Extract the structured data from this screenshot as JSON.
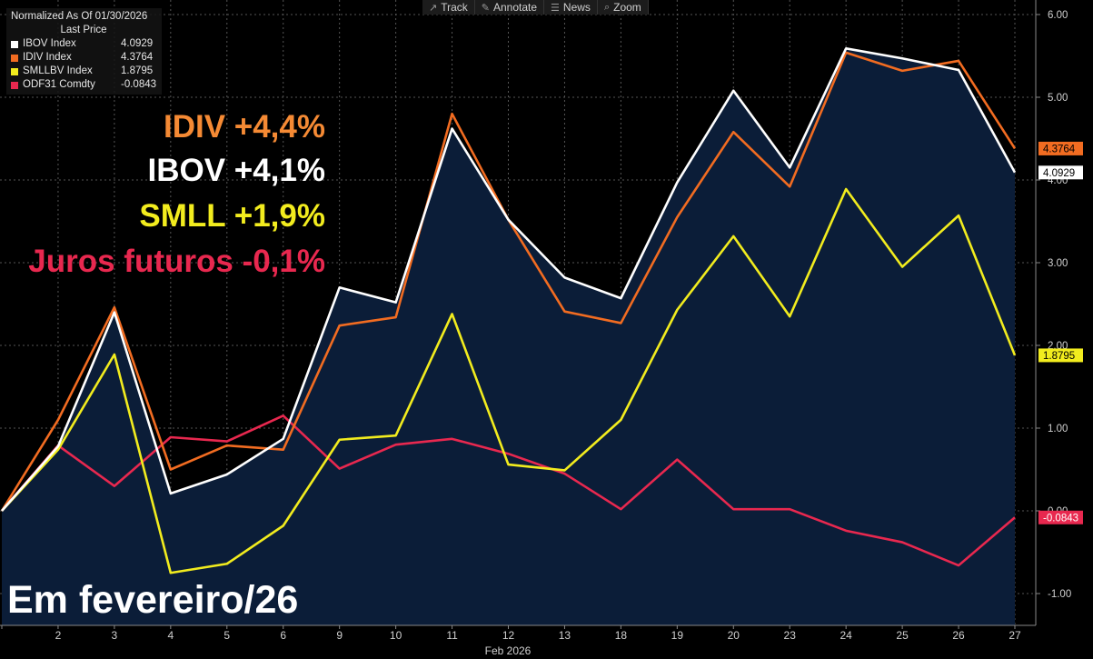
{
  "toolbar": {
    "items": [
      {
        "label": "Track",
        "icon": "track-icon"
      },
      {
        "label": "Annotate",
        "icon": "pencil-icon"
      },
      {
        "label": "News",
        "icon": "news-icon"
      },
      {
        "label": "Zoom",
        "icon": "magnifier-icon"
      }
    ]
  },
  "legend": {
    "header": "Normalized As Of 01/30/2026",
    "subheader": "Last Price",
    "entries": [
      {
        "name": "IBOV Index",
        "value": "4.0929",
        "color": "#ffffff"
      },
      {
        "name": "IDIV Index",
        "value": "4.3764",
        "color": "#f26c21"
      },
      {
        "name": "SMLLBV Index",
        "value": "1.8795",
        "color": "#f2ec1e"
      },
      {
        "name": "ODF31 Comdty",
        "value": "-0.0843",
        "color": "#e8284f"
      }
    ]
  },
  "annotations": [
    {
      "text": "IDIV +4,4%",
      "color": "#f58a34"
    },
    {
      "text": "IBOV +4,1%",
      "color": "#ffffff"
    },
    {
      "text": "SMLL +1,9%",
      "color": "#f2ec1e"
    },
    {
      "text": "Juros futuros -0,1%",
      "color": "#e8284f"
    }
  ],
  "footer_text": "Em fevereiro/26",
  "chart_data": {
    "type": "line",
    "xlabel": "Feb 2026",
    "categories": [
      "1",
      "2",
      "3",
      "4",
      "5",
      "6",
      "9",
      "10",
      "11",
      "12",
      "13",
      "18",
      "19",
      "20",
      "23",
      "24",
      "25",
      "26",
      "27"
    ],
    "x_tick_labels": [
      "",
      "2",
      "3",
      "4",
      "5",
      "6",
      "9",
      "10",
      "11",
      "12",
      "13",
      "18",
      "19",
      "20",
      "23",
      "24",
      "25",
      "26",
      "27"
    ],
    "y_ticks": [
      "6.00",
      "5.00",
      "4.00",
      "3.00",
      "2.00",
      "1.00",
      "0.00",
      "-1.00"
    ],
    "ylim": [
      -1.35,
      6.15
    ],
    "grid": true,
    "background": "#000000",
    "area_fill_color": "#0b1d38",
    "series": [
      {
        "name": "IBOV Index",
        "color": "#ffffff",
        "last_label": "4.0929",
        "values": [
          0.0,
          0.78,
          2.4,
          0.21,
          0.44,
          0.87,
          2.7,
          2.52,
          4.62,
          3.52,
          2.82,
          2.57,
          3.97,
          5.08,
          4.15,
          5.59,
          5.47,
          5.33,
          4.09
        ]
      },
      {
        "name": "IDIV Index",
        "color": "#f26c21",
        "last_label": "4.3764",
        "values": [
          0.0,
          1.1,
          2.46,
          0.5,
          0.79,
          0.74,
          2.24,
          2.34,
          4.8,
          3.52,
          2.41,
          2.27,
          3.55,
          4.58,
          3.92,
          5.54,
          5.32,
          5.44,
          4.38
        ]
      },
      {
        "name": "SMLLBV Index",
        "color": "#f2ec1e",
        "last_label": "1.8795",
        "values": [
          0.0,
          0.74,
          1.89,
          -0.75,
          -0.64,
          -0.18,
          0.86,
          0.91,
          2.38,
          0.56,
          0.49,
          1.1,
          2.43,
          3.32,
          2.35,
          3.89,
          2.95,
          3.57,
          1.88
        ]
      },
      {
        "name": "ODF31 Comdty",
        "color": "#e8284f",
        "last_label": "-0.0843",
        "values": [
          0.0,
          0.79,
          0.3,
          0.89,
          0.84,
          1.15,
          0.51,
          0.8,
          0.87,
          0.69,
          0.45,
          0.02,
          0.62,
          0.02,
          0.02,
          -0.24,
          -0.38,
          -0.66,
          -0.08
        ]
      }
    ]
  }
}
